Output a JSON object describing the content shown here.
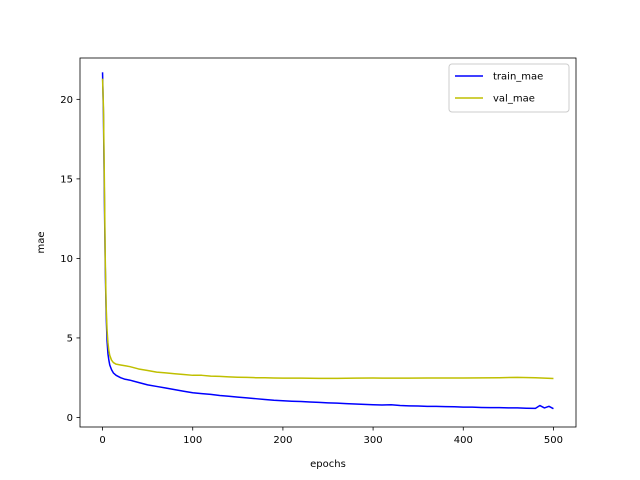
{
  "chart_data": {
    "type": "line",
    "xlabel": "epochs",
    "ylabel": "mae",
    "xlim": [
      -25,
      525
    ],
    "ylim": [
      -0.6,
      22.6
    ],
    "xticks": [
      0,
      100,
      200,
      300,
      400,
      500
    ],
    "yticks": [
      0,
      5,
      10,
      15,
      20
    ],
    "grid": false,
    "legend_position": "top-right",
    "series": [
      {
        "name": "train_mae",
        "color": "#0000ff",
        "points": [
          [
            0,
            21.7
          ],
          [
            1,
            19.0
          ],
          [
            2,
            14.0
          ],
          [
            3,
            9.5
          ],
          [
            4,
            6.5
          ],
          [
            5,
            4.8
          ],
          [
            6,
            4.0
          ],
          [
            7,
            3.6
          ],
          [
            8,
            3.3
          ],
          [
            10,
            3.0
          ],
          [
            12,
            2.8
          ],
          [
            15,
            2.65
          ],
          [
            20,
            2.5
          ],
          [
            25,
            2.4
          ],
          [
            30,
            2.35
          ],
          [
            40,
            2.2
          ],
          [
            50,
            2.05
          ],
          [
            60,
            1.95
          ],
          [
            70,
            1.85
          ],
          [
            80,
            1.75
          ],
          [
            90,
            1.65
          ],
          [
            100,
            1.55
          ],
          [
            110,
            1.5
          ],
          [
            120,
            1.45
          ],
          [
            130,
            1.38
          ],
          [
            140,
            1.33
          ],
          [
            150,
            1.28
          ],
          [
            160,
            1.23
          ],
          [
            170,
            1.18
          ],
          [
            180,
            1.13
          ],
          [
            190,
            1.08
          ],
          [
            200,
            1.05
          ],
          [
            210,
            1.02
          ],
          [
            220,
            1.0
          ],
          [
            230,
            0.97
          ],
          [
            240,
            0.95
          ],
          [
            250,
            0.92
          ],
          [
            260,
            0.9
          ],
          [
            270,
            0.87
          ],
          [
            280,
            0.85
          ],
          [
            290,
            0.82
          ],
          [
            300,
            0.8
          ],
          [
            310,
            0.78
          ],
          [
            320,
            0.8
          ],
          [
            330,
            0.75
          ],
          [
            340,
            0.73
          ],
          [
            350,
            0.72
          ],
          [
            360,
            0.7
          ],
          [
            370,
            0.7
          ],
          [
            380,
            0.68
          ],
          [
            390,
            0.67
          ],
          [
            400,
            0.65
          ],
          [
            410,
            0.65
          ],
          [
            420,
            0.63
          ],
          [
            430,
            0.62
          ],
          [
            440,
            0.62
          ],
          [
            450,
            0.6
          ],
          [
            460,
            0.6
          ],
          [
            470,
            0.58
          ],
          [
            480,
            0.57
          ],
          [
            485,
            0.75
          ],
          [
            490,
            0.6
          ],
          [
            495,
            0.7
          ],
          [
            500,
            0.55
          ]
        ]
      },
      {
        "name": "val_mae",
        "color": "#bfbf00",
        "points": [
          [
            0,
            21.3
          ],
          [
            1,
            19.5
          ],
          [
            2,
            15.0
          ],
          [
            3,
            10.0
          ],
          [
            4,
            7.0
          ],
          [
            5,
            5.5
          ],
          [
            6,
            4.7
          ],
          [
            7,
            4.2
          ],
          [
            8,
            3.9
          ],
          [
            10,
            3.6
          ],
          [
            12,
            3.45
          ],
          [
            15,
            3.35
          ],
          [
            20,
            3.3
          ],
          [
            25,
            3.25
          ],
          [
            30,
            3.2
          ],
          [
            40,
            3.05
          ],
          [
            50,
            2.95
          ],
          [
            60,
            2.85
          ],
          [
            70,
            2.8
          ],
          [
            80,
            2.75
          ],
          [
            90,
            2.7
          ],
          [
            100,
            2.65
          ],
          [
            110,
            2.65
          ],
          [
            120,
            2.6
          ],
          [
            130,
            2.58
          ],
          [
            140,
            2.55
          ],
          [
            150,
            2.53
          ],
          [
            160,
            2.52
          ],
          [
            170,
            2.5
          ],
          [
            180,
            2.5
          ],
          [
            190,
            2.48
          ],
          [
            200,
            2.47
          ],
          [
            220,
            2.47
          ],
          [
            240,
            2.46
          ],
          [
            260,
            2.46
          ],
          [
            280,
            2.47
          ],
          [
            300,
            2.48
          ],
          [
            320,
            2.47
          ],
          [
            340,
            2.47
          ],
          [
            360,
            2.48
          ],
          [
            380,
            2.48
          ],
          [
            400,
            2.48
          ],
          [
            420,
            2.49
          ],
          [
            440,
            2.5
          ],
          [
            460,
            2.52
          ],
          [
            480,
            2.5
          ],
          [
            500,
            2.45
          ]
        ]
      }
    ]
  }
}
